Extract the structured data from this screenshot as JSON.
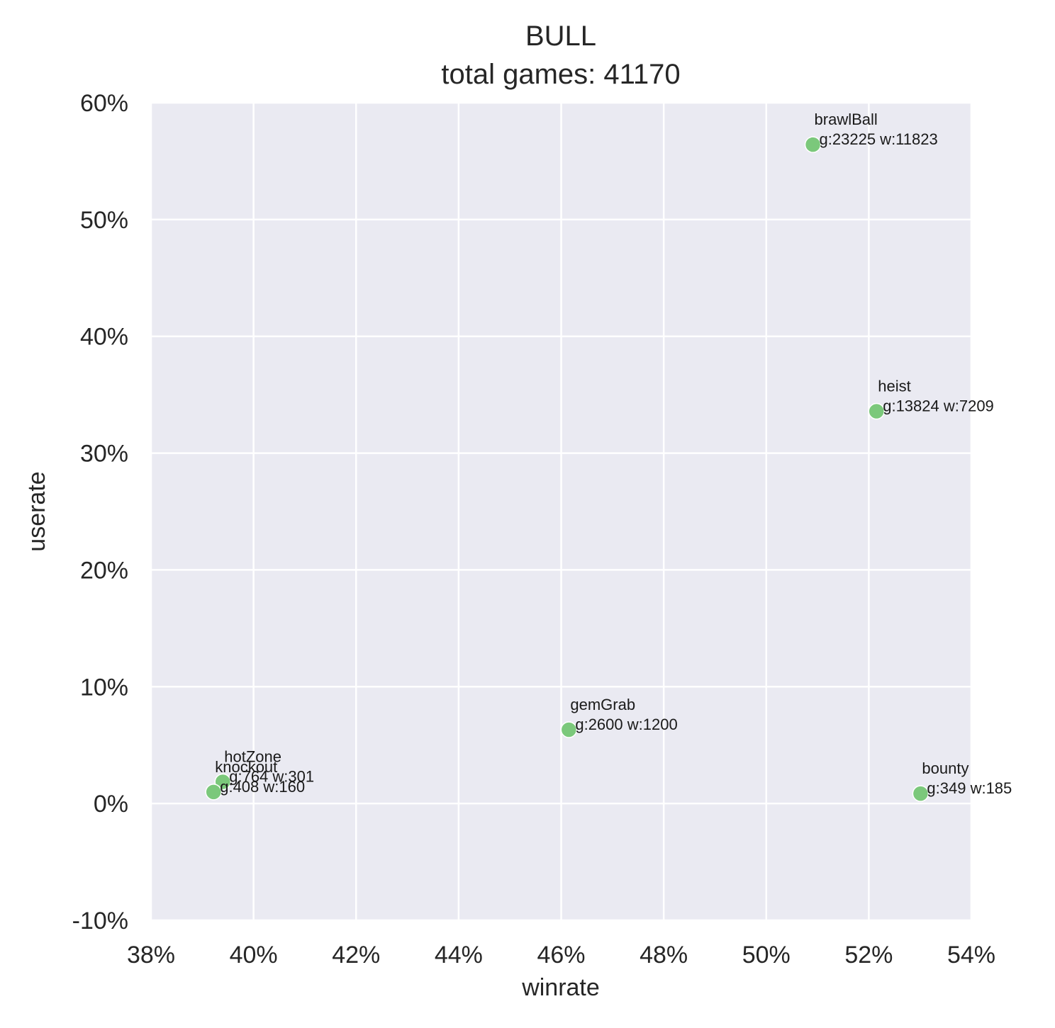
{
  "chart_data": {
    "type": "scatter",
    "title": "BULL",
    "subtitle": "total games: 41170",
    "xlabel": "winrate",
    "ylabel": "userate",
    "xlim": [
      0.38,
      0.54
    ],
    "ylim": [
      -0.1,
      0.6
    ],
    "xticks": [
      0.38,
      0.4,
      0.42,
      0.44,
      0.46,
      0.48,
      0.5,
      0.52,
      0.54
    ],
    "xtick_labels": [
      "38%",
      "40%",
      "42%",
      "44%",
      "46%",
      "48%",
      "50%",
      "52%",
      "54%"
    ],
    "yticks": [
      -0.1,
      0.0,
      0.1,
      0.2,
      0.3,
      0.4,
      0.5,
      0.6
    ],
    "ytick_labels": [
      "-10%",
      "0%",
      "10%",
      "20%",
      "30%",
      "40%",
      "50%",
      "60%"
    ],
    "grid": true,
    "colors": {
      "background": "#eaeaf2",
      "grid": "#ffffff",
      "point": "#7bc87b",
      "point_edge": "#ffffff"
    },
    "points": [
      {
        "mode": "brawlBall",
        "x": 0.5091,
        "y": 0.5641,
        "stats": "g:23225 w:11823"
      },
      {
        "mode": "heist",
        "x": 0.5215,
        "y": 0.3358,
        "stats": "g:13824 w:7209"
      },
      {
        "mode": "gemGrab",
        "x": 0.4615,
        "y": 0.0632,
        "stats": "g:2600 w:1200"
      },
      {
        "mode": "hotZone",
        "x": 0.394,
        "y": 0.0186,
        "stats": "g:764 w:301"
      },
      {
        "mode": "knockout",
        "x": 0.3922,
        "y": 0.0099,
        "stats": "g:408 w:160"
      },
      {
        "mode": "bounty",
        "x": 0.5301,
        "y": 0.0085,
        "stats": "g:349 w:185"
      }
    ]
  }
}
